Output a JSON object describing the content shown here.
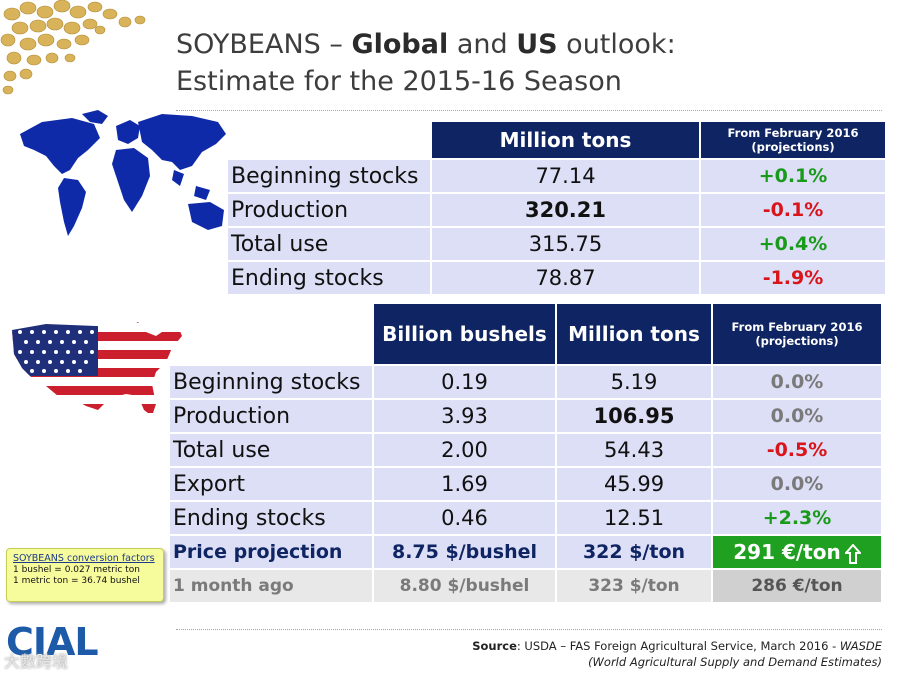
{
  "title": {
    "line1_a": "SOYBEANS – ",
    "line1_b": "Global",
    "line1_c": " and ",
    "line1_d": "US",
    "line1_e": " outlook:",
    "line2": "Estimate for the 2015-16 Season"
  },
  "global": {
    "header_col1": "Million tons",
    "header_col2_line1": "From February 2016",
    "header_col2_line2": "(projections)",
    "rows": [
      {
        "label": "Beginning stocks",
        "value": "77.14",
        "change": "+0.1%"
      },
      {
        "label": "Production",
        "value": "320.21",
        "change": "-0.1%"
      },
      {
        "label": "Total use",
        "value": "315.75",
        "change": "+0.4%"
      },
      {
        "label": "Ending stocks",
        "value": "78.87",
        "change": "-1.9%"
      }
    ]
  },
  "us": {
    "header_col1": "Billion bushels",
    "header_col2": "Million tons",
    "header_col3_line1": "From February 2016",
    "header_col3_line2": "(projections)",
    "rows": [
      {
        "label": "Beginning stocks",
        "bushels": "0.19",
        "tons": "5.19",
        "change": "0.0%"
      },
      {
        "label": "Production",
        "bushels": "3.93",
        "tons": "106.95",
        "change": "0.0%"
      },
      {
        "label": "Total use",
        "bushels": "2.00",
        "tons": "54.43",
        "change": "-0.5%"
      },
      {
        "label": "Export",
        "bushels": "1.69",
        "tons": "45.99",
        "change": "0.0%"
      },
      {
        "label": "Ending stocks",
        "bushels": "0.46",
        "tons": "12.51",
        "change": "+2.3%"
      }
    ],
    "price": {
      "label": "Price projection",
      "bushel": "8.75 $/bushel",
      "ton": "322 $/ton",
      "eur": "291 €/ton"
    },
    "ago": {
      "label": "1 month ago",
      "bushel": "8.80 $/bushel",
      "ton": "323 $/ton",
      "eur": "286 €/ton"
    }
  },
  "conversion": {
    "title": "SOYBEANS conversion factors",
    "line1": "1 bushel = 0.027 metric ton",
    "line2": "1 metric ton = 36.74 bushel"
  },
  "logo": {
    "text": "CIAL",
    "watermark": "大數跨境"
  },
  "source": {
    "label": "Source",
    "text": ": USDA – FAS Foreign Agricultural Service, March 2016 - ",
    "wasde": "WASDE",
    "line2": "(World Agricultural Supply and Demand Estimates)"
  },
  "colors": {
    "navy": "#0f2462",
    "positive": "#1a9a1a",
    "negative": "#d9141b",
    "neutral": "#7a7a7a",
    "green_box": "#20a020"
  },
  "icons": [
    "soybeans-image",
    "world-map-image",
    "us-flag-map-image",
    "up-arrow-icon"
  ]
}
